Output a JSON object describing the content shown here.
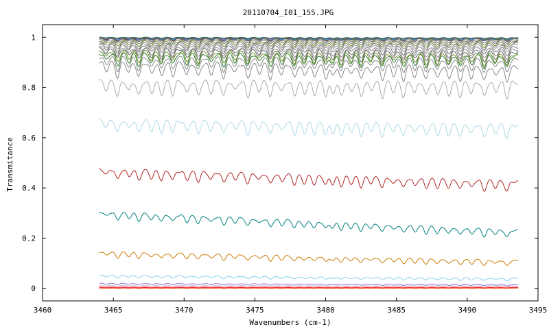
{
  "chart_data": {
    "type": "line",
    "title": "20110704_I01_155.JPG",
    "xlabel": "Wavenumbers (cm-1)",
    "ylabel": "Transmitance",
    "xlim": [
      3460,
      3495
    ],
    "ylim": [
      -0.05,
      1.05
    ],
    "xticks": [
      3460,
      3465,
      3470,
      3475,
      3480,
      3485,
      3490,
      3495
    ],
    "yticks": [
      0,
      0.2,
      0.4,
      0.6,
      0.8,
      1
    ],
    "ytick_labels": [
      "0",
      "0.2",
      "0.4",
      "0.6",
      "0.8",
      "1"
    ],
    "x_range": [
      3464,
      3493.6
    ],
    "grid": false,
    "legend": "none",
    "series": [
      {
        "color": "#222222",
        "start": 1.0,
        "end": 0.998,
        "depth": 0.004
      },
      {
        "color": "#2e8b57",
        "start": 1.0,
        "end": 0.997,
        "depth": 0.006
      },
      {
        "color": "#c71585",
        "start": 0.999,
        "end": 0.997,
        "depth": 0.006
      },
      {
        "color": "#1e90ff",
        "start": 0.998,
        "end": 0.996,
        "depth": 0.008
      },
      {
        "color": "#8b4513",
        "start": 0.997,
        "end": 0.995,
        "depth": 0.009
      },
      {
        "color": "#555555",
        "start": 0.996,
        "end": 0.994,
        "depth": 0.01
      },
      {
        "color": "#666666",
        "start": 0.994,
        "end": 0.99,
        "depth": 0.013
      },
      {
        "color": "#777777",
        "start": 0.99,
        "end": 0.985,
        "depth": 0.016
      },
      {
        "color": "#6b8e23",
        "start": 0.985,
        "end": 0.98,
        "depth": 0.02
      },
      {
        "color": "#888888",
        "start": 0.98,
        "end": 0.975,
        "depth": 0.024
      },
      {
        "color": "#999999",
        "start": 0.975,
        "end": 0.97,
        "depth": 0.028
      },
      {
        "color": "#777777",
        "start": 0.97,
        "end": 0.96,
        "depth": 0.032
      },
      {
        "color": "#888888",
        "start": 0.96,
        "end": 0.95,
        "depth": 0.036
      },
      {
        "color": "#666666",
        "start": 0.955,
        "end": 0.94,
        "depth": 0.04
      },
      {
        "color": "#6b8e23",
        "start": 0.945,
        "end": 0.93,
        "depth": 0.044
      },
      {
        "color": "#2e7d32",
        "start": 0.935,
        "end": 0.925,
        "depth": 0.048
      },
      {
        "color": "#888888",
        "start": 0.92,
        "end": 0.91,
        "depth": 0.052
      },
      {
        "color": "#888888",
        "start": 0.9,
        "end": 0.88,
        "depth": 0.058
      },
      {
        "color": "#aaaaaa",
        "start": 0.825,
        "end": 0.82,
        "depth": 0.06
      },
      {
        "color": "#add8e6",
        "start": 0.67,
        "end": 0.65,
        "depth": 0.05
      },
      {
        "color": "#b22222",
        "start": 0.475,
        "end": 0.425,
        "depth": 0.04
      },
      {
        "color": "#008080",
        "start": 0.305,
        "end": 0.23,
        "depth": 0.03
      },
      {
        "color": "#cc7a00",
        "start": 0.145,
        "end": 0.11,
        "depth": 0.022
      },
      {
        "color": "#87ceeb",
        "start": 0.052,
        "end": 0.04,
        "depth": 0.01
      },
      {
        "color": "#9370db",
        "start": 0.02,
        "end": 0.015,
        "depth": 0.005
      },
      {
        "color": "#d8bfd8",
        "start": 0.012,
        "end": 0.01,
        "depth": 0.003
      },
      {
        "color": "#ff6347",
        "start": 0.006,
        "end": 0.005,
        "depth": 0.002
      },
      {
        "color": "#dc143c",
        "start": 0.003,
        "end": 0.003,
        "depth": 0.001
      },
      {
        "color": "#ff4500",
        "start": 0.001,
        "end": 0.001,
        "depth": 0.001
      }
    ],
    "absorption_lines": [
      3464.5,
      3465.3,
      3466.1,
      3466.8,
      3467.7,
      3468.4,
      3469.2,
      3470.2,
      3471.0,
      3471.9,
      3472.8,
      3473.6,
      3474.5,
      3475.3,
      3476.1,
      3476.9,
      3477.8,
      3478.5,
      3479.2,
      3480.0,
      3480.5,
      3481.1,
      3481.8,
      3482.5,
      3483.2,
      3484.0,
      3484.8,
      3485.5,
      3486.3,
      3487.1,
      3487.9,
      3488.7,
      3489.5,
      3490.3,
      3491.2,
      3492.0,
      3492.8
    ]
  }
}
